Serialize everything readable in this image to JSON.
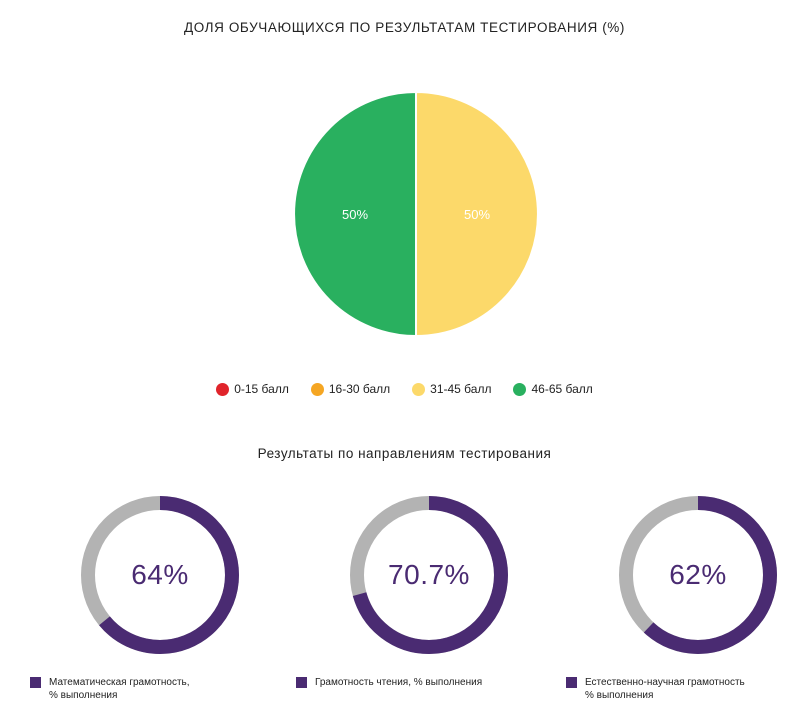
{
  "chart_data": [
    {
      "type": "pie",
      "title": "ДОЛЯ ОБУЧАЮЩИХСЯ ПО РЕЗУЛЬТАТАМ ТЕСТИРОВАНИЯ (%)",
      "slices": [
        {
          "label": "31-45 балл",
          "value": 50,
          "display": "50%",
          "color": "#fcd96a"
        },
        {
          "label": "46-65 балл",
          "value": 50,
          "display": "50%",
          "color": "#29b05f"
        }
      ],
      "legend": [
        {
          "label": "0-15 балл",
          "color": "#e0242b"
        },
        {
          "label": "16-30 балл",
          "color": "#f5a623"
        },
        {
          "label": "31-45 балл",
          "color": "#fcd96a"
        },
        {
          "label": "46-65 балл",
          "color": "#29b05f"
        }
      ],
      "legend_position": "bottom"
    },
    {
      "type": "donut",
      "subtitle": "Результаты по направлениям тестирования",
      "items": [
        {
          "label": "Математическая грамотность,\n% выполнения",
          "value": 64,
          "display": "64%"
        },
        {
          "label": "Грамотность чтения, % выполнения",
          "value": 70.7,
          "display": "70.7%"
        },
        {
          "label": "Естественно-научная грамотность\n% выполнения",
          "value": 62,
          "display": "62%"
        }
      ],
      "colors": {
        "filled": "#4a2b72",
        "remaining": "#b3b3b3"
      }
    }
  ]
}
